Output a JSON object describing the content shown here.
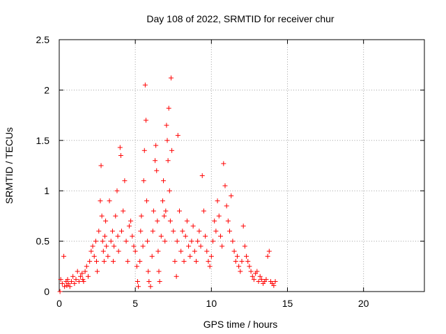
{
  "chart_data": {
    "type": "scatter",
    "title": "Day 108 of 2022, SRMTID for receiver chur",
    "xlabel": "GPS time / hours",
    "ylabel": "SRMTID / TECUs",
    "xlim": [
      0,
      24
    ],
    "ylim": [
      0,
      2.5
    ],
    "xticks": [
      0,
      5,
      10,
      15,
      20
    ],
    "yticks": [
      0,
      0.5,
      1,
      1.5,
      2,
      2.5
    ],
    "xtick_labels": [
      "0",
      "5",
      "10",
      "15",
      "20"
    ],
    "ytick_labels": [
      "0",
      "0.5",
      "1",
      "1.5",
      "2",
      "2.5"
    ],
    "grid": true,
    "marker": "+",
    "series": [
      {
        "name": "SRMTID",
        "color": "#ff0000",
        "x": [
          0.05,
          0.1,
          0.2,
          0.3,
          0.35,
          0.45,
          0.5,
          0.55,
          0.6,
          0.7,
          0.8,
          0.9,
          1.0,
          1.1,
          1.2,
          1.3,
          1.4,
          1.5,
          1.55,
          1.6,
          1.7,
          1.8,
          1.9,
          2.0,
          2.1,
          2.2,
          2.3,
          2.4,
          2.45,
          2.5,
          2.6,
          2.7,
          2.75,
          2.8,
          2.85,
          2.9,
          2.95,
          3.0,
          3.05,
          3.1,
          3.2,
          3.3,
          3.4,
          3.5,
          3.55,
          3.6,
          3.7,
          3.8,
          3.85,
          3.9,
          4.0,
          4.05,
          4.1,
          4.2,
          4.3,
          4.4,
          4.5,
          4.6,
          4.7,
          4.8,
          4.9,
          5.0,
          5.1,
          5.15,
          5.2,
          5.3,
          5.35,
          5.4,
          5.5,
          5.55,
          5.6,
          5.65,
          5.7,
          5.75,
          5.8,
          5.85,
          5.9,
          6.0,
          6.1,
          6.15,
          6.2,
          6.3,
          6.35,
          6.4,
          6.45,
          6.5,
          6.55,
          6.6,
          6.7,
          6.8,
          6.85,
          6.9,
          6.95,
          7.0,
          7.05,
          7.1,
          7.15,
          7.2,
          7.25,
          7.3,
          7.35,
          7.4,
          7.5,
          7.6,
          7.7,
          7.75,
          7.8,
          7.9,
          8.0,
          8.1,
          8.2,
          8.3,
          8.4,
          8.5,
          8.6,
          8.7,
          8.8,
          8.9,
          9.0,
          9.1,
          9.2,
          9.3,
          9.4,
          9.5,
          9.6,
          9.7,
          9.8,
          9.9,
          10.0,
          10.1,
          10.2,
          10.3,
          10.4,
          10.5,
          10.6,
          10.7,
          10.8,
          10.9,
          11.0,
          11.1,
          11.2,
          11.3,
          11.4,
          11.5,
          11.6,
          11.7,
          11.8,
          11.9,
          12.0,
          12.1,
          12.2,
          12.3,
          12.4,
          12.5,
          12.6,
          12.7,
          12.8,
          12.9,
          13.0,
          13.1,
          13.2,
          13.3,
          13.4,
          13.5,
          13.6,
          13.7,
          13.8,
          13.9,
          14.0,
          14.1,
          14.2
        ],
        "y": [
          0.0,
          0.12,
          0.08,
          0.35,
          0.05,
          0.1,
          0.06,
          0.12,
          0.08,
          0.05,
          0.1,
          0.15,
          0.08,
          0.12,
          0.2,
          0.1,
          0.15,
          0.18,
          0.12,
          0.1,
          0.2,
          0.25,
          0.15,
          0.3,
          0.4,
          0.45,
          0.35,
          0.5,
          0.3,
          0.2,
          0.6,
          0.9,
          1.25,
          0.75,
          0.5,
          0.4,
          0.3,
          0.55,
          0.7,
          0.45,
          0.35,
          0.9,
          0.5,
          0.6,
          0.3,
          0.45,
          0.75,
          1.0,
          0.55,
          0.4,
          1.43,
          1.35,
          0.6,
          0.8,
          1.1,
          0.5,
          0.3,
          0.65,
          0.7,
          0.55,
          0.45,
          0.4,
          0.25,
          0.1,
          0.05,
          0.3,
          0.6,
          0.75,
          0.45,
          1.1,
          1.4,
          2.05,
          1.7,
          0.9,
          0.5,
          0.2,
          0.1,
          0.05,
          0.35,
          0.6,
          0.8,
          1.3,
          1.45,
          1.2,
          0.7,
          0.4,
          0.2,
          0.1,
          0.55,
          0.9,
          1.1,
          0.75,
          0.5,
          0.8,
          1.65,
          1.5,
          1.3,
          1.82,
          1.0,
          0.7,
          2.12,
          1.4,
          0.6,
          0.3,
          0.15,
          0.5,
          1.55,
          0.8,
          0.4,
          0.6,
          0.3,
          0.55,
          0.7,
          0.45,
          0.35,
          0.5,
          0.65,
          0.4,
          0.3,
          0.5,
          0.6,
          0.45,
          1.15,
          0.8,
          0.55,
          0.4,
          0.3,
          0.25,
          0.35,
          0.5,
          0.7,
          0.6,
          0.9,
          0.75,
          0.55,
          0.45,
          1.27,
          1.05,
          0.85,
          0.7,
          0.6,
          0.95,
          0.5,
          0.4,
          0.3,
          0.35,
          0.25,
          0.2,
          0.3,
          0.65,
          0.45,
          0.35,
          0.3,
          0.25,
          0.2,
          0.15,
          0.12,
          0.18,
          0.2,
          0.1,
          0.15,
          0.12,
          0.08,
          0.1,
          0.12,
          0.35,
          0.4,
          0.1,
          0.08,
          0.06,
          0.1
        ]
      }
    ]
  }
}
